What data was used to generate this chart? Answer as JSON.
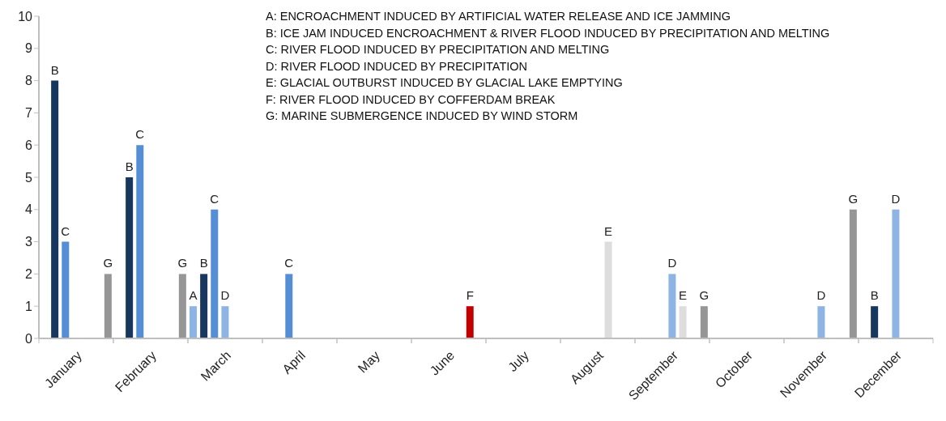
{
  "chart_data": {
    "type": "bar",
    "categories": [
      null,
      null,
      null,
      "January",
      null,
      null,
      null,
      null,
      null,
      null,
      "February",
      null,
      null,
      null,
      null,
      null,
      null,
      "March",
      null,
      null,
      null,
      null,
      null,
      null,
      "April",
      null,
      null,
      null,
      null,
      null,
      null,
      "May",
      null,
      null,
      null,
      null,
      null,
      null,
      "June",
      null,
      null,
      null,
      null,
      null,
      null,
      "July",
      null,
      null,
      null,
      null,
      null,
      null,
      "August",
      null,
      null,
      null,
      null,
      null,
      null,
      "September",
      null,
      null,
      null,
      null,
      null,
      null,
      "October",
      null,
      null,
      null,
      null,
      null,
      null,
      "November",
      null,
      null,
      null,
      null,
      null,
      null,
      "December",
      null,
      null,
      null
    ],
    "series": [
      {
        "name": "A",
        "color": "#8db4e2",
        "values": [
          null,
          null,
          null,
          null,
          null,
          null,
          null,
          null,
          null,
          null,
          null,
          null,
          null,
          null,
          1,
          null,
          null,
          null,
          null,
          null,
          null,
          null,
          null,
          null,
          null,
          null,
          null,
          null,
          null,
          null,
          null,
          null,
          null,
          null,
          null,
          null,
          null,
          null,
          null,
          null,
          null,
          null,
          null,
          null,
          null,
          null,
          null,
          null,
          null,
          null,
          null,
          null,
          null,
          null,
          null,
          null,
          null,
          null,
          null,
          null,
          null,
          null,
          null,
          null,
          null,
          null,
          null,
          null,
          null,
          null,
          null,
          null,
          null,
          null,
          null,
          null,
          null,
          null,
          null,
          null,
          null,
          null,
          null,
          null
        ]
      },
      {
        "name": "B",
        "color": "#17375e",
        "values": [
          null,
          8,
          null,
          null,
          null,
          null,
          null,
          null,
          5,
          null,
          null,
          null,
          null,
          null,
          null,
          2,
          null,
          null,
          null,
          null,
          null,
          null,
          null,
          null,
          null,
          null,
          null,
          null,
          null,
          null,
          null,
          null,
          null,
          null,
          null,
          null,
          null,
          null,
          null,
          null,
          null,
          null,
          null,
          null,
          null,
          null,
          null,
          null,
          null,
          null,
          null,
          null,
          null,
          null,
          null,
          null,
          null,
          null,
          null,
          null,
          null,
          null,
          null,
          null,
          null,
          null,
          null,
          null,
          null,
          null,
          null,
          null,
          null,
          null,
          null,
          null,
          null,
          null,
          1,
          null,
          null,
          null,
          null,
          null
        ]
      },
      {
        "name": "C",
        "color": "#558ed5",
        "values": [
          null,
          null,
          3,
          null,
          null,
          null,
          null,
          null,
          null,
          6,
          null,
          null,
          null,
          null,
          null,
          null,
          4,
          null,
          null,
          null,
          null,
          null,
          null,
          2,
          null,
          null,
          null,
          null,
          null,
          null,
          null,
          null,
          null,
          null,
          null,
          null,
          null,
          null,
          null,
          null,
          null,
          null,
          null,
          null,
          null,
          null,
          null,
          null,
          null,
          null,
          null,
          null,
          null,
          null,
          null,
          null,
          null,
          null,
          null,
          null,
          null,
          null,
          null,
          null,
          null,
          null,
          null,
          null,
          null,
          null,
          null,
          null,
          null,
          null,
          null,
          null,
          null,
          null,
          null,
          null,
          null,
          null,
          null,
          null
        ]
      },
      {
        "name": "D",
        "color": "#8db4e2",
        "values": [
          null,
          null,
          null,
          null,
          null,
          null,
          null,
          null,
          null,
          null,
          null,
          null,
          null,
          null,
          null,
          null,
          null,
          1,
          null,
          null,
          null,
          null,
          null,
          null,
          null,
          null,
          null,
          null,
          null,
          null,
          null,
          null,
          null,
          null,
          null,
          null,
          null,
          null,
          null,
          null,
          null,
          null,
          null,
          null,
          null,
          null,
          null,
          null,
          null,
          null,
          null,
          null,
          null,
          null,
          null,
          null,
          null,
          null,
          null,
          2,
          null,
          null,
          null,
          null,
          null,
          null,
          null,
          null,
          null,
          null,
          null,
          null,
          null,
          1,
          null,
          null,
          null,
          null,
          null,
          null,
          4,
          null,
          null,
          null
        ]
      },
      {
        "name": "E",
        "color": "#dddddd",
        "values": [
          null,
          null,
          null,
          null,
          null,
          null,
          null,
          null,
          null,
          null,
          null,
          null,
          null,
          null,
          null,
          null,
          null,
          null,
          null,
          null,
          null,
          null,
          null,
          null,
          null,
          null,
          null,
          null,
          null,
          null,
          null,
          null,
          null,
          null,
          null,
          null,
          null,
          null,
          null,
          null,
          null,
          null,
          null,
          null,
          null,
          null,
          null,
          null,
          null,
          null,
          null,
          null,
          null,
          3,
          null,
          null,
          null,
          null,
          null,
          null,
          1,
          null,
          null,
          null,
          null,
          null,
          null,
          null,
          null,
          null,
          null,
          null,
          null,
          null,
          null,
          null,
          null,
          null,
          null,
          null,
          null,
          null,
          null,
          null
        ]
      },
      {
        "name": "F",
        "color": "#c00000",
        "values": [
          null,
          null,
          null,
          null,
          null,
          null,
          null,
          null,
          null,
          null,
          null,
          null,
          null,
          null,
          null,
          null,
          null,
          null,
          null,
          null,
          null,
          null,
          null,
          null,
          null,
          null,
          null,
          null,
          null,
          null,
          null,
          null,
          null,
          null,
          null,
          null,
          null,
          null,
          null,
          null,
          1,
          null,
          null,
          null,
          null,
          null,
          null,
          null,
          null,
          null,
          null,
          null,
          null,
          null,
          null,
          null,
          null,
          null,
          null,
          null,
          null,
          null,
          null,
          null,
          null,
          null,
          null,
          null,
          null,
          null,
          null,
          null,
          null,
          null,
          null,
          null,
          null,
          null,
          null,
          null,
          null,
          null,
          null,
          null
        ]
      },
      {
        "name": "G",
        "color": "#969696",
        "values": [
          null,
          null,
          null,
          null,
          null,
          null,
          2,
          null,
          null,
          null,
          null,
          null,
          null,
          2,
          null,
          null,
          null,
          null,
          null,
          null,
          null,
          null,
          null,
          null,
          null,
          null,
          null,
          null,
          null,
          null,
          null,
          null,
          null,
          null,
          null,
          null,
          null,
          null,
          null,
          null,
          null,
          null,
          null,
          null,
          null,
          null,
          null,
          null,
          null,
          null,
          null,
          null,
          null,
          null,
          null,
          null,
          null,
          null,
          null,
          null,
          null,
          null,
          1,
          null,
          null,
          null,
          null,
          null,
          null,
          null,
          null,
          null,
          null,
          null,
          null,
          null,
          4,
          null,
          null,
          null,
          null,
          null,
          null,
          null
        ]
      }
    ],
    "ylim": [
      0,
      10
    ],
    "yticks": [
      0,
      1,
      2,
      3,
      4,
      5,
      6,
      7,
      8,
      9,
      10
    ],
    "grid": false,
    "annotations": [
      "A: ENCROACHMENT INDUCED BY ARTIFICIAL WATER RELEASE AND ICE JAMMING",
      "B: ICE JAM INDUCED ENCROACHMENT & RIVER FLOOD INDUCED BY PRECIPITATION AND MELTING",
      "C: RIVER FLOOD INDUCED BY PRECIPITATION AND MELTING",
      "D: RIVER FLOOD INDUCED BY PRECIPITATION",
      "E: GLACIAL OUTBURST INDUCED BY GLACIAL LAKE EMPTYING",
      "F: RIVER FLOOD INDUCED BY COFFERDAM BREAK",
      "G: MARINE SUBMERGENCE INDUCED BY WIND STORM"
    ]
  }
}
